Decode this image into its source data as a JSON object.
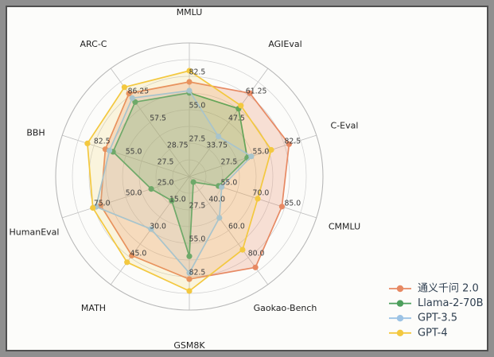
{
  "figure": {
    "background_color": "#8f8f8f",
    "canvas_color": "#fcfcfa",
    "border_color": "#4f4f4f",
    "grid_color": "#cfcfcf",
    "outer_ring_color": "#b8b8b8",
    "spoke_color": "#bdbdbd",
    "tick_label_color": "#3d3d3d",
    "axis_label_color": "#1f1f1f",
    "legend_text_color": "#2f3f50"
  },
  "chart_data": {
    "type": "radar",
    "grid": "on",
    "legend_position": "lower right",
    "categories": [
      "MMLU",
      "AGIEval",
      "C-Eval",
      "CMMLU",
      "Gaokao-Bench",
      "GSM8K",
      "MATH",
      "HumanEval",
      "BBH",
      "ARC-C"
    ],
    "axes": [
      {
        "name": "MMLU",
        "min": 0,
        "ring_values": [
          27.5,
          55.0,
          82.5
        ],
        "ring_labels": [
          "27.5",
          "55.0",
          "82.5"
        ]
      },
      {
        "name": "AGIEval",
        "min": 20,
        "ring_values": [
          33.75,
          47.5,
          61.25
        ],
        "ring_labels": [
          "33.75",
          "47.5",
          "61.25"
        ]
      },
      {
        "name": "C-Eval",
        "min": 0,
        "ring_values": [
          27.5,
          55.0,
          82.5
        ],
        "ring_labels": [
          "27.5",
          "55.0",
          "82.5"
        ]
      },
      {
        "name": "CMMLU",
        "min": 40,
        "ring_values": [
          55.0,
          70.0,
          85.0
        ],
        "ring_labels": [
          "55.0",
          "70.0",
          "85.0"
        ]
      },
      {
        "name": "Gaokao-Bench",
        "min": 20,
        "ring_values": [
          40.0,
          60.0,
          80.0
        ],
        "ring_labels": [
          "40.0",
          "60.0",
          "80.0"
        ]
      },
      {
        "name": "GSM8K",
        "min": 0,
        "ring_values": [
          27.5,
          55.0,
          82.5
        ],
        "ring_labels": [
          "27.5",
          "55.0",
          "82.5"
        ]
      },
      {
        "name": "MATH",
        "min": 0,
        "ring_values": [
          15.0,
          30.0,
          45.0
        ],
        "ring_labels": [
          "15.0",
          "30.0",
          "45.0"
        ]
      },
      {
        "name": "HumanEval",
        "min": 0,
        "ring_values": [
          25.0,
          50.0,
          75.0
        ],
        "ring_labels": [
          "25.0",
          "50.0",
          "75.0"
        ]
      },
      {
        "name": "BBH",
        "min": 0,
        "ring_values": [
          27.5,
          55.0,
          82.5
        ],
        "ring_labels": [
          "27.5",
          "55.0",
          "82.5"
        ]
      },
      {
        "name": "ARC-C",
        "min": 0,
        "ring_values": [
          28.75,
          57.5,
          86.25
        ],
        "ring_labels": [
          "28.75",
          "57.5",
          "86.25"
        ]
      }
    ],
    "series": [
      {
        "name": "通义千问 2.0",
        "color": "#e78963",
        "fill_opacity": 0.25,
        "values": [
          77.9,
          62.4,
          86.3,
          83.7,
          87.3,
          84.5,
          43.9,
          69.8,
          72.7,
          88.4
        ]
      },
      {
        "name": "Llama-2-70B",
        "color": "#4d9f5d",
        "fill_opacity": 0.25,
        "values": [
          68.9,
          54.5,
          50.1,
          53.8,
          24.1,
          65.7,
          13.4,
          30.0,
          66.0,
          79.3
        ]
      },
      {
        "name": "GPT-3.5",
        "color": "#9cc3e5",
        "fill_opacity": 0.15,
        "values": [
          70.7,
          40.4,
          53.6,
          55.3,
          50.6,
          79.4,
          29.2,
          73.4,
          69.1,
          83.5
        ]
      },
      {
        "name": "GPT-4",
        "color": "#f3c83f",
        "fill_opacity": 0.15,
        "values": [
          87.1,
          56.1,
          70.9,
          72.3,
          74.2,
          94.3,
          47.6,
          75.9,
          88.2,
          95.0
        ]
      }
    ],
    "legend_entries": [
      "通义千问 2.0",
      "Llama-2-70B",
      "GPT-3.5",
      "GPT-4"
    ]
  }
}
